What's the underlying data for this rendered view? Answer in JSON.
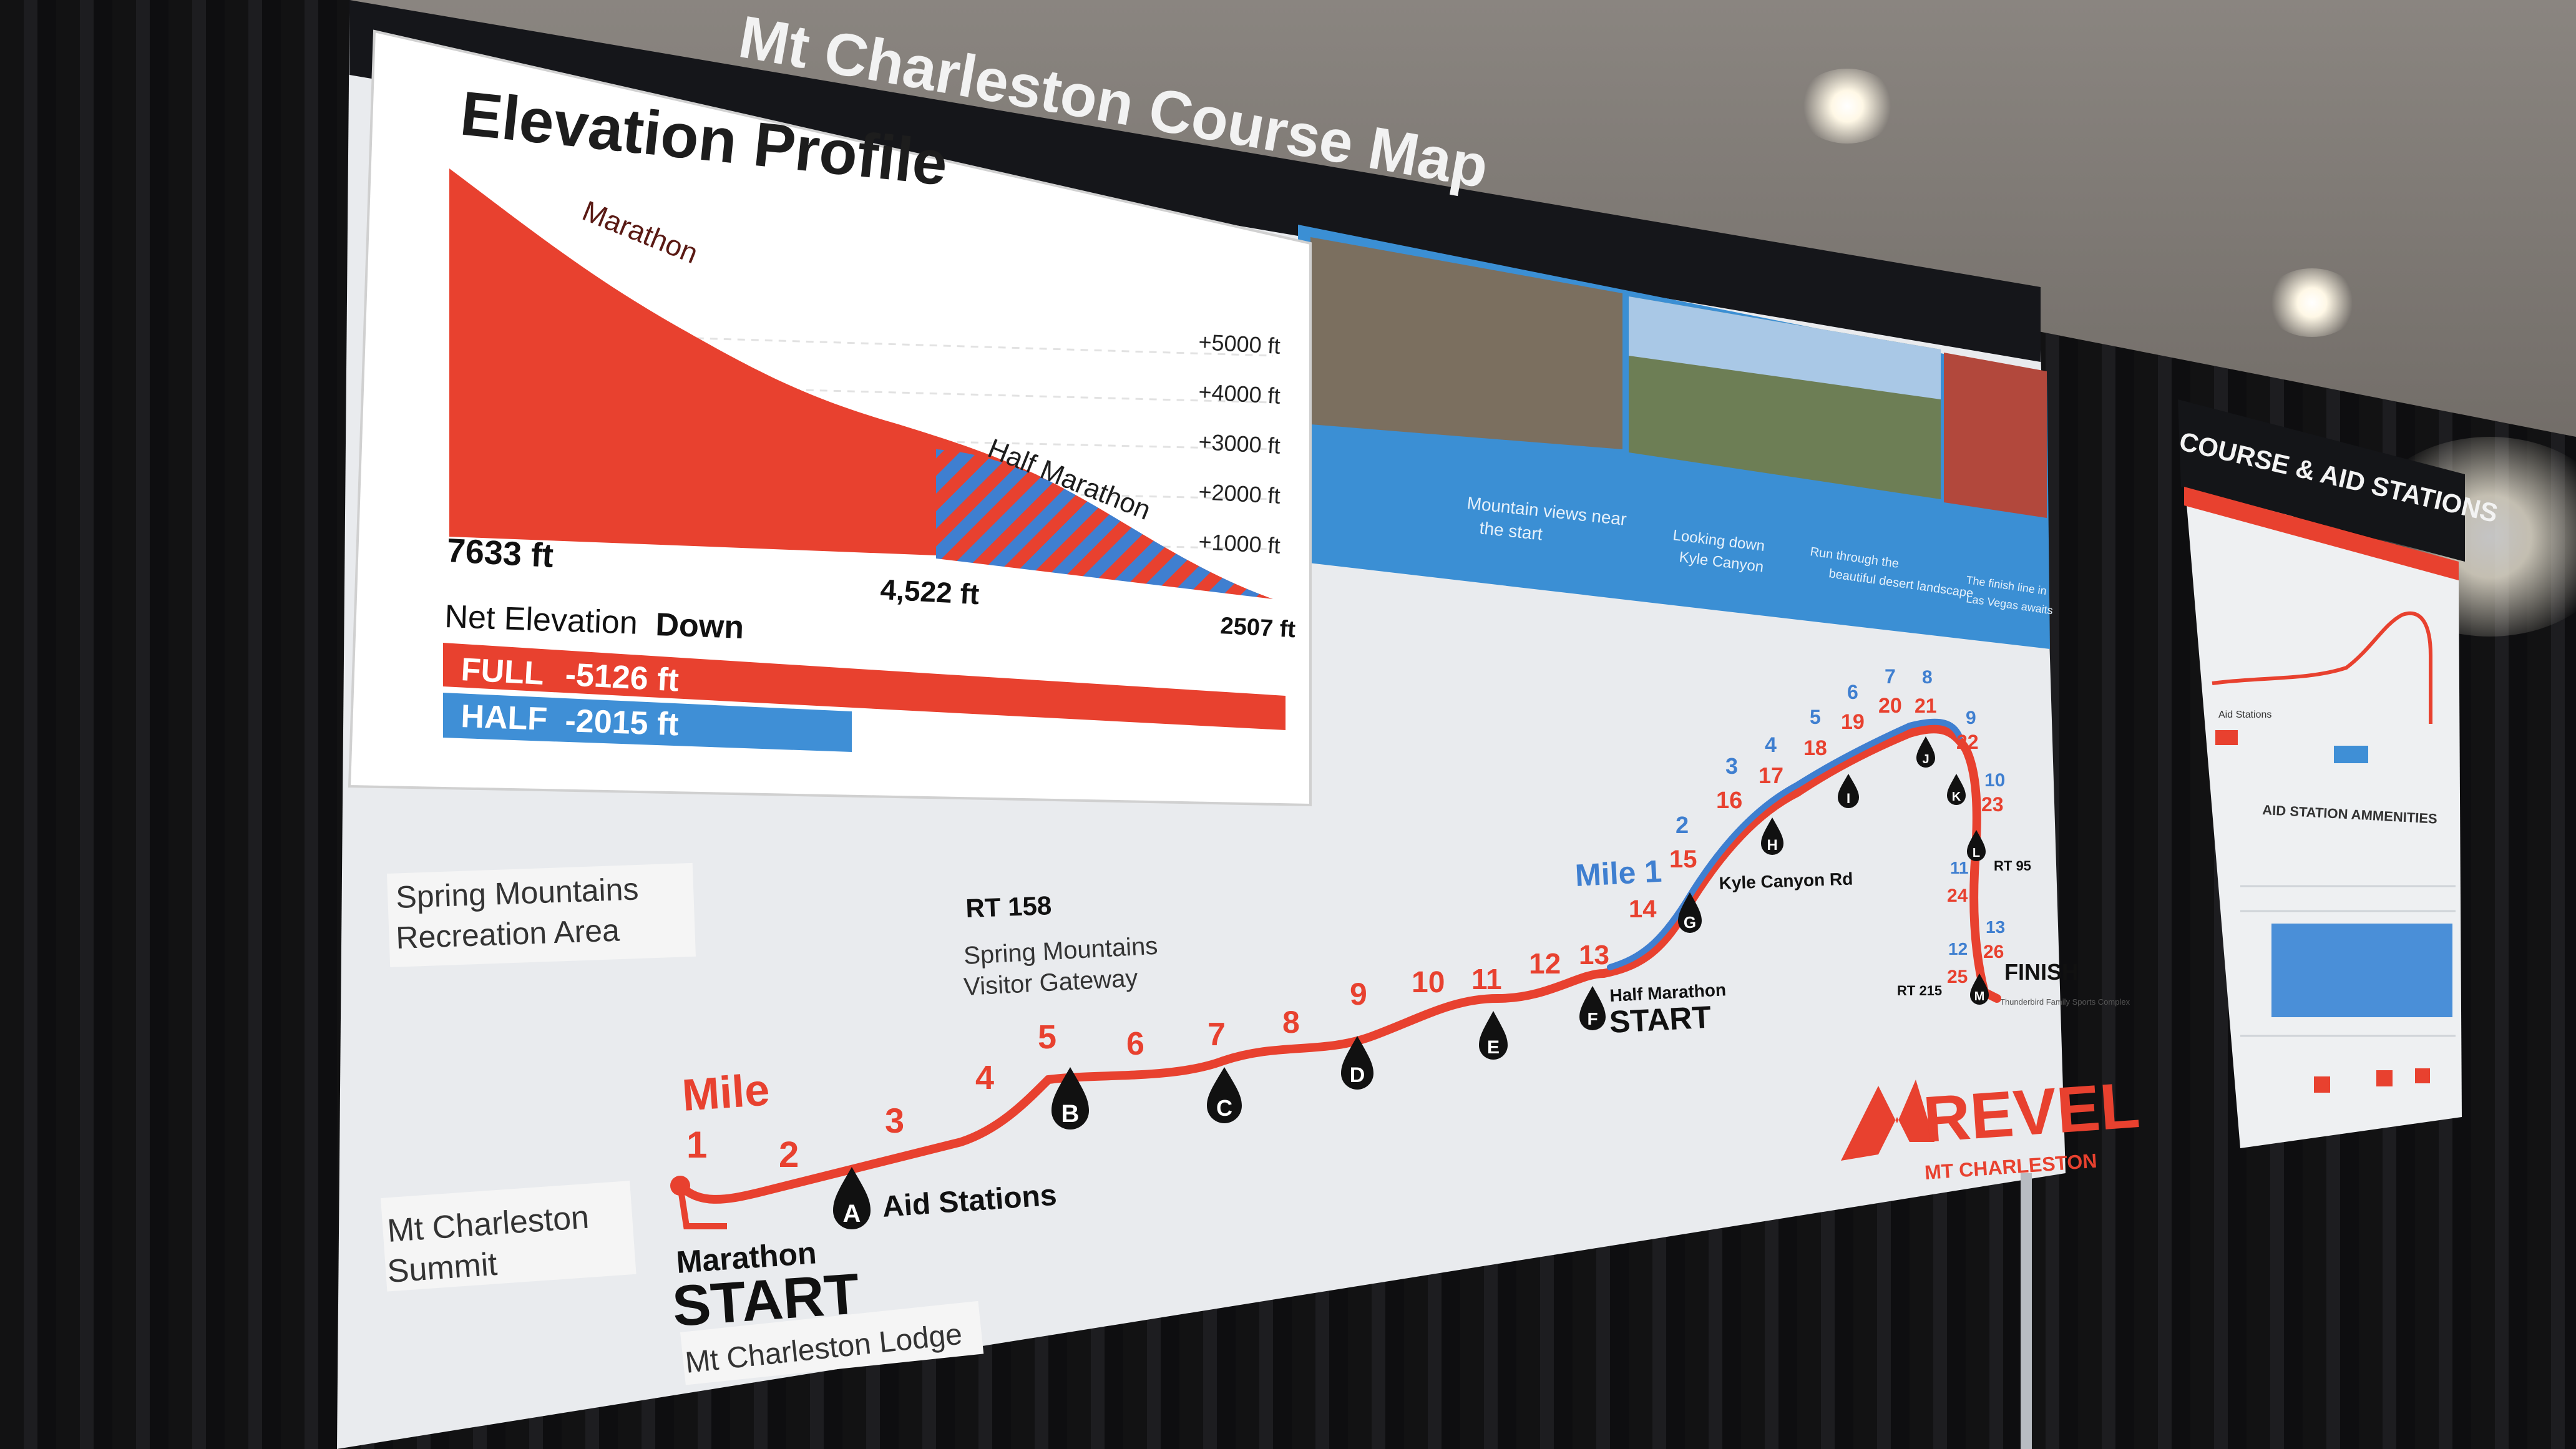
{
  "banner": {
    "title": "Mt Charleston Course Map",
    "photo_captions": [
      "Mountain views near the start",
      "Looking down Kyle Canyon",
      "Run through the beautiful desert landscape",
      "The finish line in Las Vegas awaits"
    ]
  },
  "elevation_profile": {
    "title": "Elevation Profile",
    "marathon_label": "Marathon",
    "half_marathon_label": "Half Marathon",
    "y_ticks": [
      "+5000 ft",
      "+4000 ft",
      "+3000 ft",
      "+2000 ft",
      "+1000 ft"
    ],
    "start_elevation": "7633 ft",
    "half_start_elevation": "4,522 ft",
    "finish_elevation": "2507 ft",
    "net_label": "Net Elevation",
    "net_label_bold": "Down",
    "full_label": "FULL",
    "full_value": "-5126 ft",
    "half_label": "HALF",
    "half_value": "-2015 ft",
    "full_drop_ft": 5126,
    "half_drop_ft": 2015,
    "colors": {
      "full": "#e8412f",
      "half": "#3f8fd6"
    }
  },
  "map": {
    "area_spring_mountains_1": "Spring Mountains",
    "area_spring_mountains_2": "Recreation Area",
    "rt158": "RT 158",
    "visitor_gateway_1": "Spring Mountains",
    "visitor_gateway_2": "Visitor Gateway",
    "mt_summit_1": "Mt Charleston",
    "mt_summit_2": "Summit",
    "mile_label": "Mile",
    "marathon_start_1": "Marathon",
    "marathon_start_2": "START",
    "lodge": "Mt Charleston Lodge",
    "aid_stations": "Aid Stations",
    "half_start_1": "Half Marathon",
    "half_start_2": "START",
    "half_mile_label": "Mile 1",
    "kyle_canyon": "Kyle Canyon Rd",
    "rt95": "RT 95",
    "rt215": "RT 215",
    "finish": "FINISH",
    "finish_sub": "Thunderbird Family Sports Complex",
    "marathon_miles": [
      "1",
      "2",
      "3",
      "4",
      "5",
      "6",
      "7",
      "8",
      "9",
      "10",
      "11",
      "12",
      "13",
      "14",
      "15",
      "16",
      "17",
      "18",
      "19",
      "20",
      "21",
      "22",
      "23",
      "24",
      "25",
      "26"
    ],
    "half_miles": [
      "2",
      "3",
      "4",
      "5",
      "6",
      "7",
      "8",
      "9",
      "10",
      "11",
      "12",
      "13"
    ],
    "aid_letters": [
      "A",
      "B",
      "C",
      "D",
      "E",
      "F",
      "G",
      "H",
      "I",
      "J",
      "K",
      "L",
      "M"
    ],
    "brand": "REVEL",
    "brand_sub": "MT CHARLESTON"
  },
  "side_sign": {
    "title": "COURSE & AID STATIONS",
    "aid_legend": "Aid Stations",
    "amenities_title": "AID STATION AMMENITIES"
  }
}
